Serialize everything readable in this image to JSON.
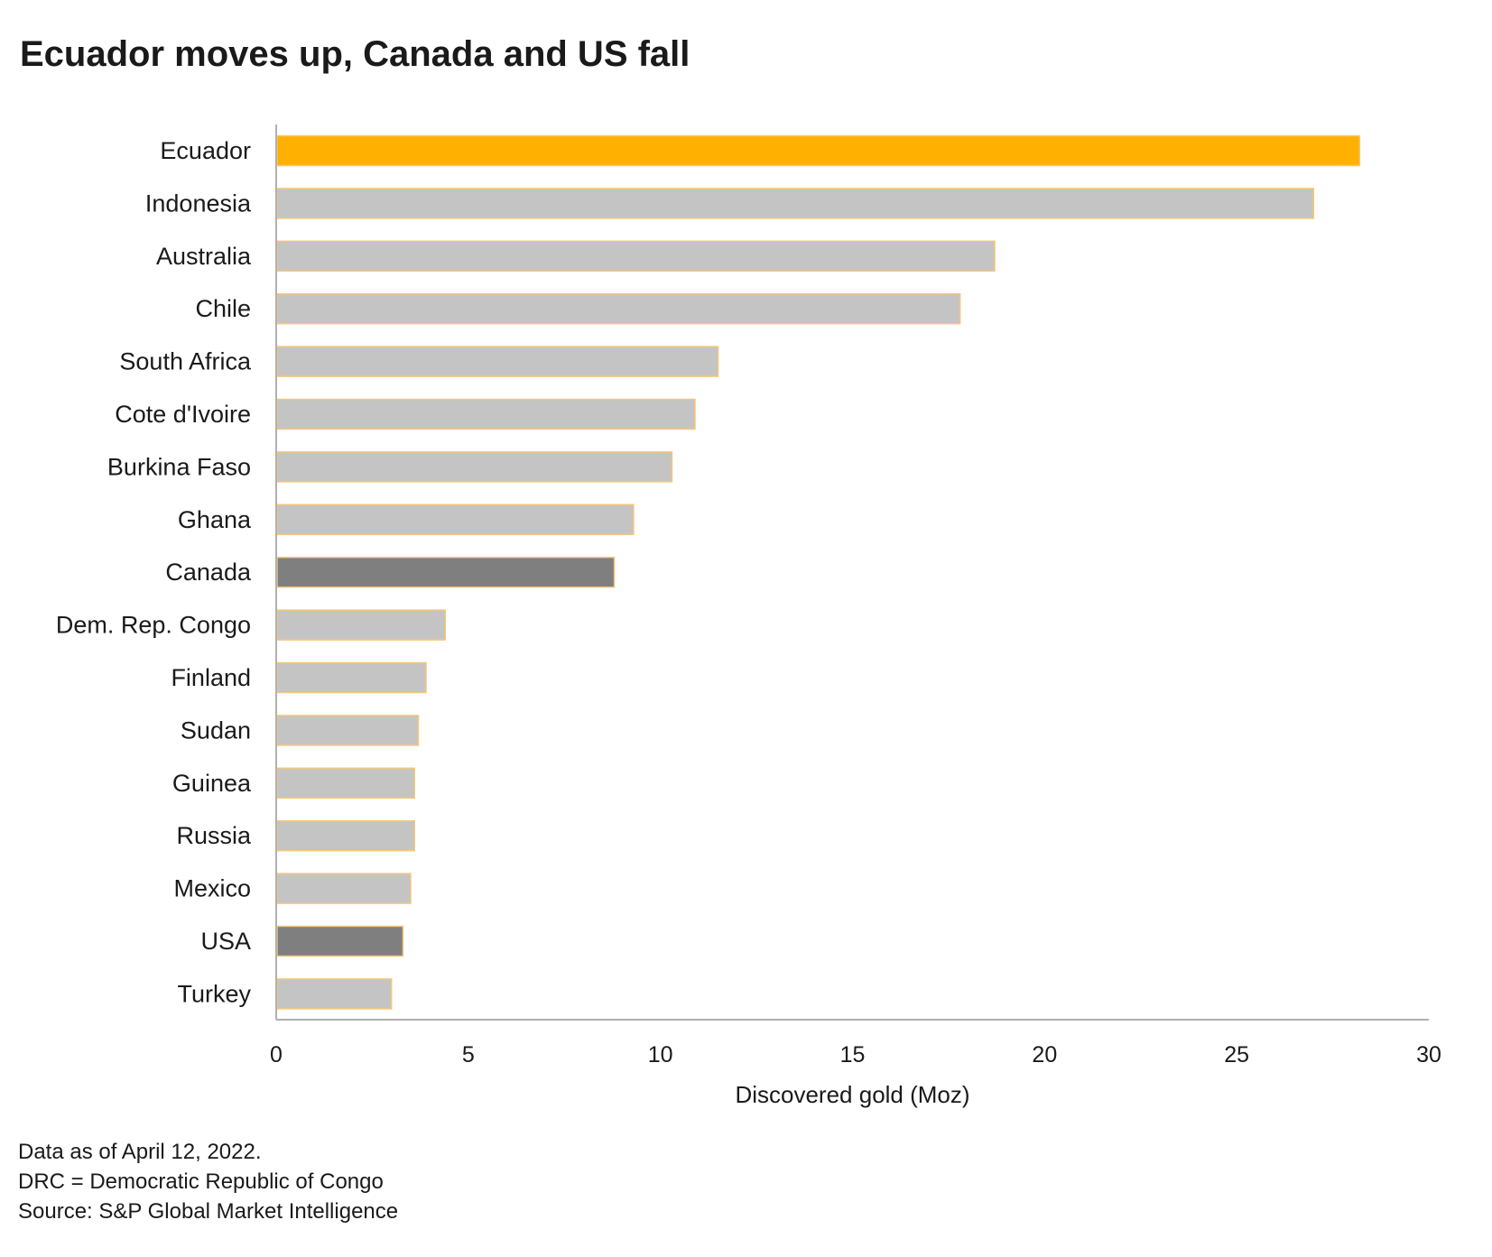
{
  "chart_data": {
    "type": "bar",
    "orientation": "horizontal",
    "title": "Ecuador moves up, Canada and US fall",
    "xlabel": "Discovered gold (Moz)",
    "ylabel": "",
    "xlim": [
      0,
      30
    ],
    "ticks": [
      0,
      5,
      10,
      15,
      20,
      25,
      30
    ],
    "categories": [
      "Ecuador",
      "Indonesia",
      "Australia",
      "Chile",
      "South Africa",
      "Cote d'Ivoire",
      "Burkina Faso",
      "Ghana",
      "Canada",
      "Dem. Rep. Congo",
      "Finland",
      "Sudan",
      "Guinea",
      "Russia",
      "Mexico",
      "USA",
      "Turkey"
    ],
    "values": [
      28.2,
      27.0,
      18.7,
      17.8,
      11.5,
      10.9,
      10.3,
      9.3,
      8.8,
      4.4,
      3.9,
      3.7,
      3.6,
      3.6,
      3.5,
      3.3,
      3.0
    ],
    "bar_colors": [
      "#FFB000",
      "#C4C4C4",
      "#C4C4C4",
      "#C4C4C4",
      "#C4C4C4",
      "#C4C4C4",
      "#C4C4C4",
      "#C4C4C4",
      "#7F7F7F",
      "#C4C4C4",
      "#C4C4C4",
      "#C4C4C4",
      "#C4C4C4",
      "#C4C4C4",
      "#C4C4C4",
      "#7F7F7F",
      "#C4C4C4"
    ],
    "bar_outline_color": "#F5C77A",
    "grid": false,
    "legend": "none"
  },
  "notes": [
    "Data as of April 12, 2022.",
    "DRC = Democratic Republic of Congo",
    "Source: S&P Global Market Intelligence"
  ]
}
